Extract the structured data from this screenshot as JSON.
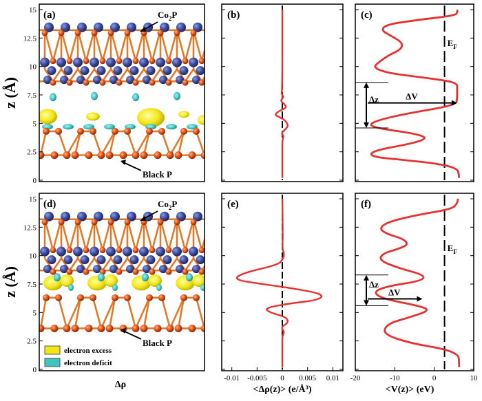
{
  "figure": {
    "y_axis_title": "z (Å)",
    "y_ticks": [
      "0",
      "2.5",
      "5",
      "7.5",
      "10",
      "12.5",
      "15"
    ],
    "y_range": [
      0,
      15
    ],
    "bottom_titles": {
      "structure": "Δρ",
      "charge": "<Δρ(z)> (e/Å³)",
      "potential": "<V(z)> (eV)"
    },
    "colors": {
      "curve": "#e8312f",
      "co_atom": "#3d4fa0",
      "p_atom": "#e0521a",
      "bond": "#e07a2a",
      "excess": "#f2e61a",
      "deficit": "#3fc4c0"
    }
  },
  "panels": {
    "a": {
      "label": "(a)",
      "top_label": "Co",
      "top_sub": "2",
      "top_tail": "P",
      "bottom_label": "Black P"
    },
    "b": {
      "label": "(b)"
    },
    "c": {
      "label": "(c)",
      "ef": "E",
      "ef_sub": "F",
      "dz": "Δz",
      "dv": "ΔV"
    },
    "d": {
      "label": "(d)",
      "top_label": "Co",
      "top_sub": "2",
      "top_tail": "P",
      "bottom_label": "Black P",
      "legend": [
        {
          "label": "electron excess",
          "color": "#f2e61a"
        },
        {
          "label": "electron deficit",
          "color": "#3fc4c0"
        }
      ]
    },
    "e": {
      "label": "(e)"
    },
    "f": {
      "label": "(f)",
      "ef": "E",
      "ef_sub": "F",
      "dz": "Δz",
      "dv": "ΔV"
    }
  },
  "chart_data": [
    {
      "type": "line",
      "panel": "b",
      "ylim": [
        0,
        15
      ],
      "xlim": [
        -0.012,
        0.012
      ],
      "series": [
        {
          "x": [
            0,
            0,
            0,
            0,
            0.0003,
            -0.0002,
            0.0004,
            0.0012,
            0.0007,
            -0.0003,
            -0.0016,
            -0.0006,
            0.0009,
            0.0004,
            -0.0004,
            0.0003,
            -0.0002,
            0,
            0
          ],
          "y": [
            0.2,
            2,
            3,
            3.5,
            3.9,
            4.1,
            4.4,
            4.75,
            5.2,
            5.5,
            5.75,
            6.1,
            6.4,
            6.7,
            7.0,
            7.3,
            7.6,
            8,
            15
          ]
        }
      ]
    },
    {
      "type": "line",
      "panel": "c",
      "ylim": [
        0,
        15
      ],
      "xlim": [
        -20,
        10
      ],
      "ef": 2.6,
      "series": [
        {
          "x": [
            6.3,
            6.2,
            5.8,
            2.0,
            -8,
            -14.5,
            -16.5,
            -14,
            -6,
            -1.5,
            -5,
            -13,
            -16.5,
            -15,
            -8,
            5.5,
            5.8,
            5.8,
            5.8,
            -2,
            -11.5,
            -15.5,
            -14,
            -11.5,
            -9,
            -8,
            -8.5,
            -11,
            -13.5,
            -12,
            -4,
            5.5,
            5.8,
            5.9
          ],
          "y": [
            0.2,
            0.6,
            1.0,
            1.4,
            1.8,
            2.0,
            2.3,
            2.7,
            3.2,
            3.7,
            4.1,
            4.5,
            4.8,
            5.2,
            5.8,
            6.6,
            7.2,
            8.0,
            8.6,
            9.0,
            9.4,
            9.9,
            10.4,
            11.0,
            11.4,
            11.8,
            12.2,
            12.7,
            13.2,
            13.7,
            14.1,
            14.5,
            14.8,
            15.0
          ]
        }
      ]
    },
    {
      "type": "line",
      "panel": "e",
      "ylim": [
        0,
        15
      ],
      "xlim": [
        -0.012,
        0.012
      ],
      "series": [
        {
          "x": [
            0,
            0,
            0,
            0,
            0.0004,
            -0.0003,
            0.0012,
            0.0008,
            -0.0025,
            -0.0035,
            0.0015,
            0.0072,
            0.0082,
            0.0025,
            -0.004,
            -0.0098,
            -0.0076,
            -0.0008,
            0.0001,
            0.0004,
            0,
            0.0001,
            0
          ],
          "y": [
            0.2,
            1.5,
            2.5,
            2.9,
            3.3,
            3.7,
            4.1,
            4.6,
            5.0,
            5.4,
            5.8,
            6.1,
            6.6,
            7.1,
            7.5,
            7.9,
            8.5,
            9.2,
            9.7,
            10.1,
            10.6,
            11.5,
            15
          ]
        }
      ]
    },
    {
      "type": "line",
      "panel": "f",
      "ylim": [
        0,
        15
      ],
      "xlim": [
        -20,
        10
      ],
      "ef": 2.6,
      "series": [
        {
          "x": [
            6.3,
            6.3,
            6.0,
            2.5,
            -6,
            -13,
            -12,
            -6,
            -1,
            -4,
            -13,
            -15.5,
            -12,
            -3,
            -2.5,
            -9,
            -14,
            -13,
            -9,
            -6.5,
            -8,
            -12,
            -14,
            -11.5,
            -4,
            4.5,
            5.8,
            6.0
          ],
          "y": [
            0.2,
            0.8,
            1.3,
            1.8,
            2.3,
            3.1,
            4.0,
            4.6,
            5.2,
            5.6,
            6.2,
            6.8,
            7.3,
            7.8,
            8.3,
            8.9,
            9.6,
            10.2,
            10.6,
            11.0,
            11.5,
            11.9,
            12.4,
            13.0,
            13.6,
            14.1,
            14.6,
            15.0
          ]
        }
      ]
    }
  ]
}
